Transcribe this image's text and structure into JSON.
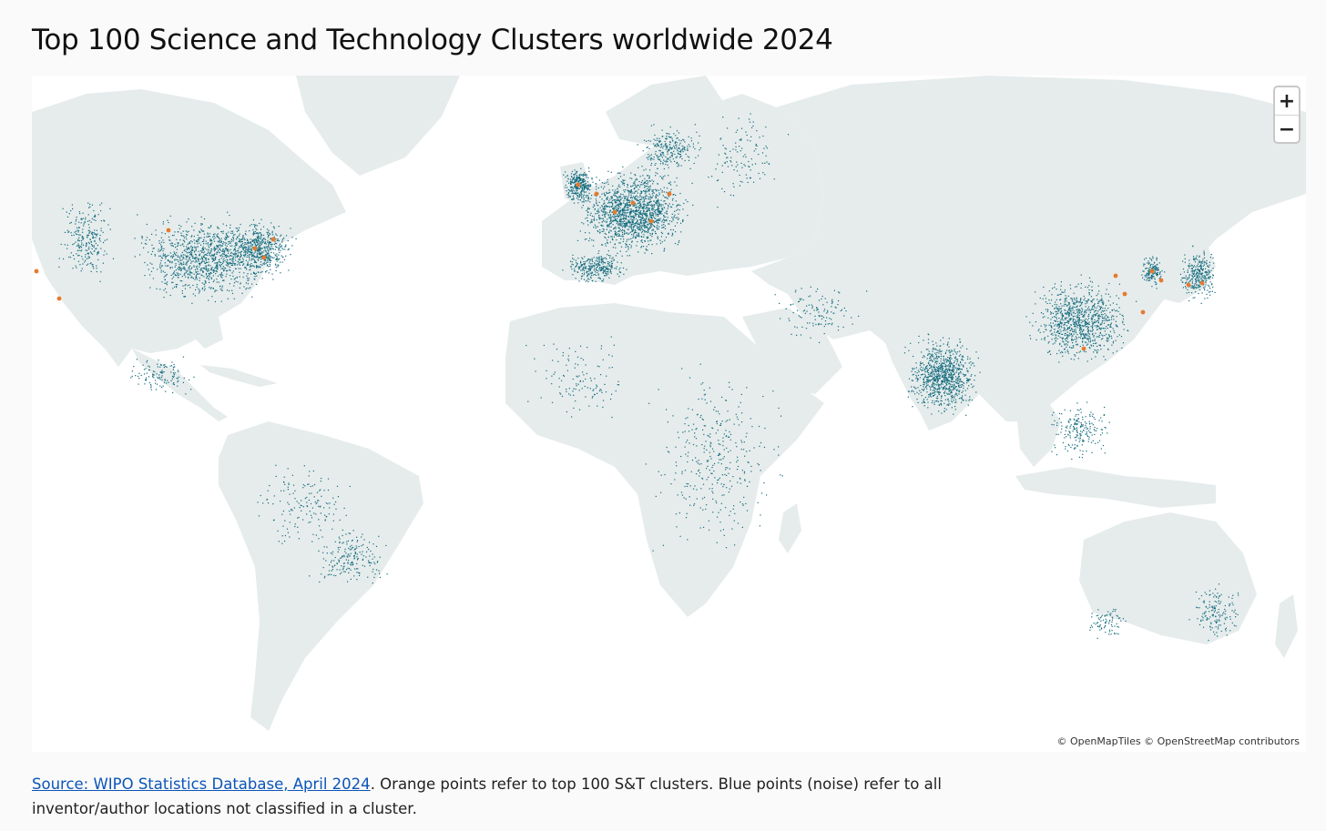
{
  "title": "Top 100 Science and Technology Clusters worldwide 2024",
  "map": {
    "zoom_in_label": "+",
    "zoom_out_label": "−",
    "attribution": "© OpenMapTiles © OpenStreetMap contributors",
    "colors": {
      "land": "#e6ecec",
      "water": "#ffffff",
      "noise_points": "#136b7d",
      "cluster_points": "#e67a2c"
    }
  },
  "caption": {
    "link_text": "Source: WIPO Statistics Database, April 2024",
    "text": ". Orange points refer to top 100 S&T clusters. Blue points (noise) refer to all inventor/author locations not classified in a cluster."
  }
}
